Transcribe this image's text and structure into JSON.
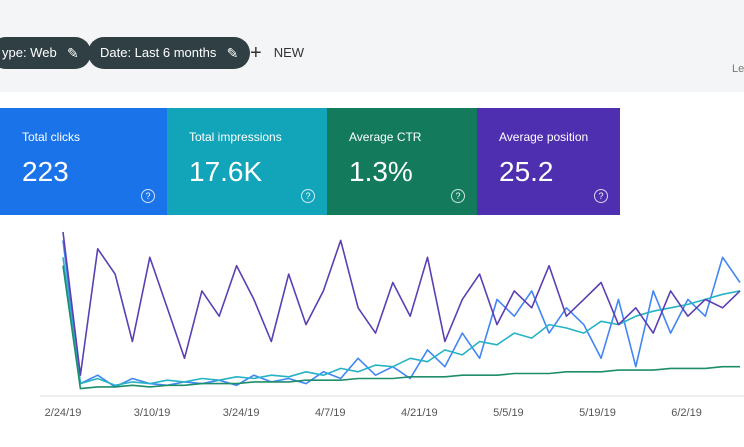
{
  "toolbar": {
    "chips": [
      "ype: Web",
      "Date: Last 6 months"
    ],
    "new_button": "NEW",
    "corner_text": "Le"
  },
  "cards": [
    {
      "label": "Total clicks",
      "value": "223",
      "color": "#1a73e8"
    },
    {
      "label": "Total impressions",
      "value": "17.6K",
      "color": "#12a4b8"
    },
    {
      "label": "Average CTR",
      "value": "1.3%",
      "color": "#137a5c"
    },
    {
      "label": "Average position",
      "value": "25.2",
      "color": "#4e2fb0"
    }
  ],
  "chart": {
    "type": "line",
    "x_labels": [
      "2/24/19",
      "3/10/19",
      "3/24/19",
      "4/7/19",
      "4/21/19",
      "5/5/19",
      "5/19/19",
      "6/2/19"
    ],
    "series": [
      {
        "color": "#4285f4",
        "values": [
          90,
          5,
          10,
          3,
          8,
          5,
          4,
          6,
          5,
          7,
          4,
          10,
          6,
          8,
          5,
          12,
          8,
          20,
          10,
          15,
          8,
          25,
          15,
          35,
          20,
          55,
          45,
          60,
          35,
          50,
          40,
          20,
          55,
          15,
          60,
          35,
          55,
          45,
          80,
          65
        ]
      },
      {
        "color": "#26b3c5",
        "values": [
          80,
          5,
          8,
          4,
          6,
          5,
          7,
          6,
          8,
          7,
          9,
          8,
          10,
          9,
          12,
          10,
          14,
          12,
          16,
          15,
          20,
          18,
          25,
          22,
          30,
          28,
          35,
          32,
          40,
          38,
          35,
          42,
          40,
          45,
          48,
          50,
          52,
          55,
          58,
          60
        ]
      },
      {
        "color": "#1e8e6a",
        "values": [
          75,
          2,
          3,
          3,
          4,
          3,
          4,
          4,
          5,
          5,
          5,
          6,
          6,
          6,
          7,
          7,
          7,
          8,
          8,
          8,
          9,
          9,
          9,
          10,
          10,
          10,
          11,
          11,
          11,
          12,
          12,
          12,
          13,
          13,
          13,
          14,
          14,
          14,
          15,
          15
        ]
      },
      {
        "color": "#5b3fb3",
        "values": [
          95,
          10,
          85,
          70,
          30,
          80,
          50,
          20,
          60,
          45,
          75,
          55,
          30,
          70,
          40,
          60,
          90,
          50,
          35,
          65,
          45,
          80,
          30,
          55,
          70,
          40,
          60,
          50,
          75,
          45,
          55,
          65,
          40,
          50,
          35,
          60,
          45,
          55,
          50,
          60
        ]
      }
    ]
  }
}
